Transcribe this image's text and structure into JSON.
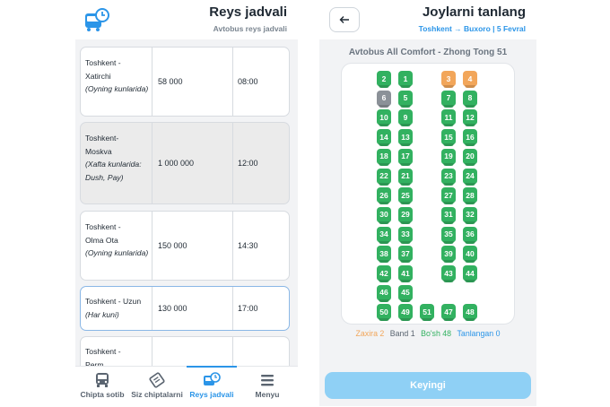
{
  "schedule": {
    "title": "Reys jadvali",
    "subtitle": "Avtobus reys jadvali",
    "rows": [
      {
        "route": "Toshkent -\nXatirchi",
        "days": "(Oyning kunlarida)",
        "price": "58 000",
        "time": "08:00"
      },
      {
        "route": "Toshkent-\nMoskva",
        "days": "(Xafta kunlarida: Dush, Pay)",
        "price": "1 000 000",
        "time": "12:00"
      },
      {
        "route": "Toshkent -\nOlma Ota",
        "days": "(Oyning kunlarida)",
        "price": "150 000",
        "time": "14:30"
      },
      {
        "route": "Toshkent - Uzun",
        "days": "(Har kuni)",
        "price": "130 000",
        "time": "17:00"
      },
      {
        "route": "Toshkent -\nPerm",
        "days": "",
        "price": "",
        "time": ""
      }
    ]
  },
  "tabs": [
    {
      "label": "Chipta sotib",
      "icon": "bus-icon"
    },
    {
      "label": "Siz chiptalarni",
      "icon": "ticket-icon"
    },
    {
      "label": "Reys jadvali",
      "icon": "bus-clock-icon"
    },
    {
      "label": "Menyu",
      "icon": "menu-icon"
    }
  ],
  "seats_screen": {
    "title": "Joylarni tanlang",
    "trip": "Toshkent → Buxoro | 5 Fevral",
    "bus": "Avtobus All Comfort - Zhong Tong 51",
    "legend": {
      "reserved": "Zaxira 2",
      "busy": "Band 1",
      "free": "Bo'sh 48",
      "selected": "Tanlangan 0"
    },
    "next_label": "Keyingi",
    "reserved_seats": [
      "3",
      "4"
    ],
    "busy_seats": [
      "6"
    ],
    "colors": {
      "free": "#32b160",
      "reserved": "#f2a65a",
      "busy": "#8b9198",
      "accent": "#2b95e8"
    },
    "seat_rows": [
      [
        "2",
        "1",
        "3",
        "4"
      ],
      [
        "6",
        "5",
        "7",
        "8"
      ],
      [
        "10",
        "9",
        "11",
        "12"
      ],
      [
        "14",
        "13",
        "15",
        "16"
      ],
      [
        "18",
        "17",
        "19",
        "20"
      ],
      [
        "22",
        "21",
        "23",
        "24"
      ],
      [
        "26",
        "25",
        "27",
        "28"
      ],
      [
        "30",
        "29",
        "31",
        "32"
      ],
      [
        "34",
        "33",
        "35",
        "36"
      ],
      [
        "38",
        "37",
        "39",
        "40"
      ],
      [
        "42",
        "41",
        "43",
        "44"
      ],
      [
        "46",
        "45"
      ],
      [
        "50",
        "49",
        "51",
        "47",
        "48"
      ]
    ]
  }
}
